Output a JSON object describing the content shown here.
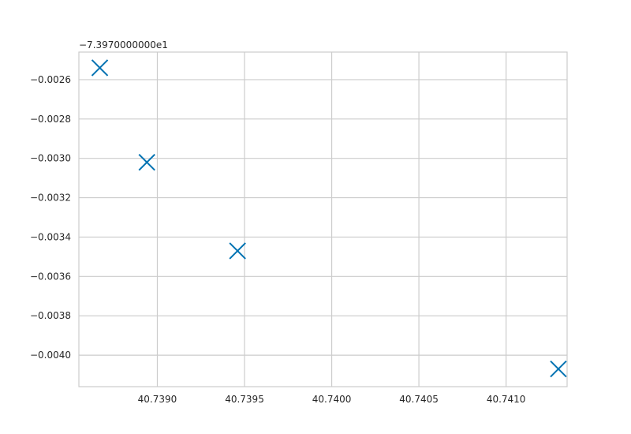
{
  "chart_data": {
    "type": "scatter",
    "marker": "x",
    "marker_color": "#0072b2",
    "grid": true,
    "grid_color": "#cccccc",
    "spine_color": "#cccccc",
    "y_offset_label": "−7.3970000000e1",
    "x": [
      40.73867,
      40.73894,
      40.73946,
      40.7413
    ],
    "y": [
      -0.00254,
      -0.00302,
      -0.00347,
      -0.00407
    ],
    "xlim": [
      40.73855,
      40.74135
    ],
    "ylim": [
      -0.00416,
      -0.00246
    ],
    "x_ticks": [
      40.739,
      40.7395,
      40.74,
      40.7405,
      40.741
    ],
    "x_tick_labels": [
      "40.7390",
      "40.7395",
      "40.7400",
      "40.7405",
      "40.7410"
    ],
    "y_ticks": [
      -0.0026,
      -0.0028,
      -0.003,
      -0.0032,
      -0.0034,
      -0.0036,
      -0.0038,
      -0.004
    ],
    "y_tick_labels": [
      "−0.0026",
      "−0.0028",
      "−0.0030",
      "−0.0032",
      "−0.0034",
      "−0.0036",
      "−0.0038",
      "−0.0040"
    ]
  }
}
